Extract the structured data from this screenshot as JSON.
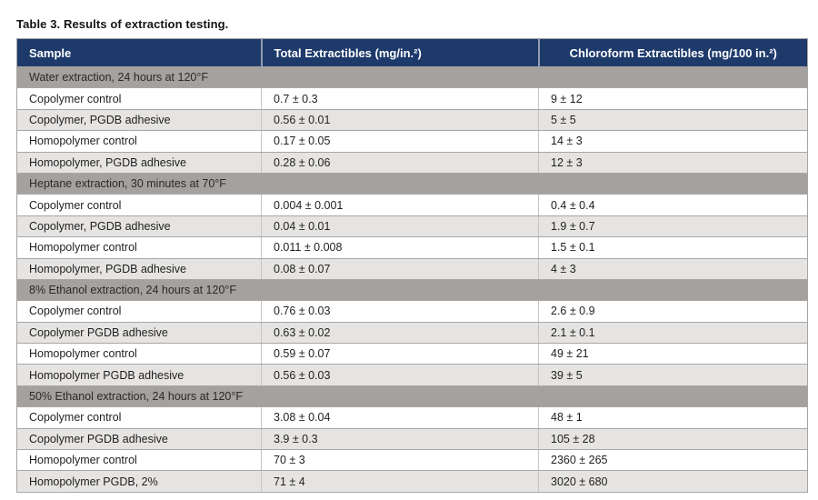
{
  "caption": "Table 3. Results of extraction testing.",
  "colors": {
    "header_bg": "#1d3a6b",
    "header_text": "#ffffff",
    "header_divider": "#939cb0",
    "section_row_bg": "#a5a19e",
    "row_bg": "#ffffff",
    "alt_row_bg": "#e6e4e2",
    "grid_line": "#a9a7a5",
    "body_text": "#1f1f1f"
  },
  "table": {
    "columns": [
      "Sample",
      "Total Extractibles (mg/in.²)",
      "Chloroform Extractibles (mg/100 in.²)"
    ],
    "sections": [
      {
        "header": "Water extraction, 24 hours at 120°F",
        "rows": [
          [
            "Copolymer control",
            "0.7 ± 0.3",
            "9 ± 12"
          ],
          [
            "Copolymer, PGDB adhesive",
            "0.56 ± 0.01",
            "5 ± 5"
          ],
          [
            "Homopolymer control",
            "0.17 ± 0.05",
            "14 ± 3"
          ],
          [
            "Homopolymer, PGDB adhesive",
            "0.28 ± 0.06",
            "12 ± 3"
          ]
        ]
      },
      {
        "header": "Heptane extraction, 30 minutes at 70°F",
        "rows": [
          [
            "Copolymer control",
            "0.004 ± 0.001",
            "0.4 ± 0.4"
          ],
          [
            "Copolymer, PGDB adhesive",
            "0.04 ± 0.01",
            "1.9 ± 0.7"
          ],
          [
            "Homopolymer control",
            "0.011 ± 0.008",
            "1.5 ± 0.1"
          ],
          [
            "Homopolymer, PGDB adhesive",
            "0.08 ± 0.07",
            "4 ± 3"
          ]
        ]
      },
      {
        "header": "8% Ethanol extraction, 24 hours at 120°F",
        "rows": [
          [
            "Copolymer control",
            "0.76 ± 0.03",
            "2.6 ± 0.9"
          ],
          [
            "Copolymer PGDB adhesive",
            "0.63 ± 0.02",
            "2.1 ± 0.1"
          ],
          [
            "Homopolymer control",
            "0.59 ± 0.07",
            "49 ± 21"
          ],
          [
            "Homopolymer PGDB adhesive",
            "0.56 ± 0.03",
            "39 ± 5"
          ]
        ]
      },
      {
        "header": "50% Ethanol extraction, 24 hours at 120°F",
        "rows": [
          [
            "Copolymer control",
            "3.08 ± 0.04",
            "48 ± 1"
          ],
          [
            "Copolymer PGDB adhesive",
            "3.9 ± 0.3",
            "105 ± 28"
          ],
          [
            "Homopolymer control",
            "70 ± 3",
            "2360 ± 265"
          ],
          [
            "Homopolymer PGDB, 2%",
            "71 ± 4",
            "3020 ± 680"
          ]
        ]
      }
    ]
  }
}
